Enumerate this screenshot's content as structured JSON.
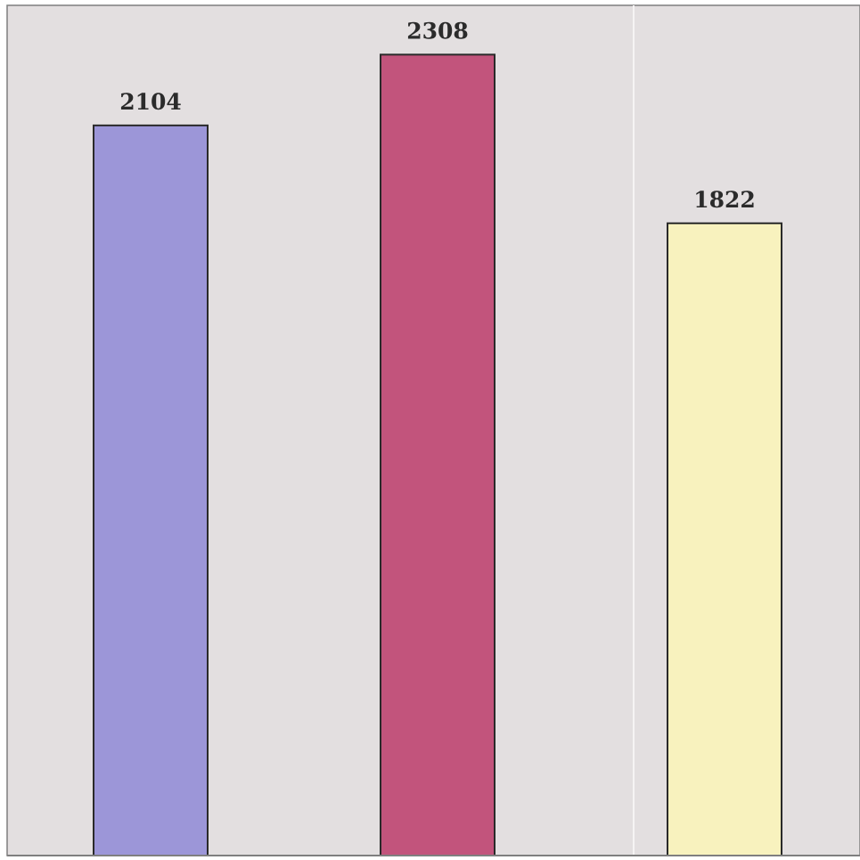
{
  "chart_data": {
    "type": "bar",
    "categories": [
      "",
      "",
      ""
    ],
    "values": [
      2104,
      2308,
      1822
    ],
    "data_labels": [
      "2104",
      "2308",
      "1822"
    ],
    "colors": [
      "#9c96d8",
      "#c2547c",
      "#f8f2be"
    ],
    "ylim": [
      0,
      2450
    ],
    "grid": false,
    "legend": "none",
    "title": "",
    "xlabel": "",
    "ylabel": ""
  },
  "style": {
    "background": "#e3dfe0",
    "panel_border": "#7f7f7f",
    "bar_stroke": "#2a2a2a",
    "divider_color": "#f6f4f4"
  }
}
